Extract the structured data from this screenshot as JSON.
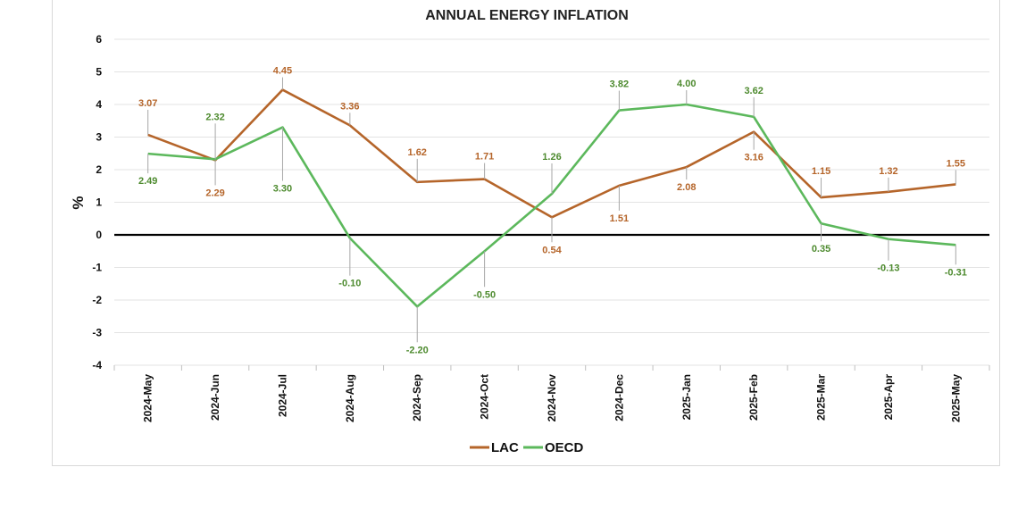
{
  "colors": {
    "lac": "#b5652a",
    "oecd": "#5cb85c",
    "oecd_label": "#4d8a2e",
    "grid": "#e3e3e3",
    "zero_line": "#000000",
    "leader": "#a6a6a6"
  },
  "chart_data": {
    "type": "line",
    "title": "ANNUAL ENERGY INFLATION",
    "xlabel": "",
    "ylabel": "%",
    "ylim": [
      -4,
      6
    ],
    "yticks": [
      "6",
      "5",
      "4",
      "3",
      "2",
      "1",
      "0",
      "-1",
      "-2",
      "-3",
      "-4"
    ],
    "grid": true,
    "legend_position": "bottom",
    "categories": [
      "2024-May",
      "2024-Jun",
      "2024-Jul",
      "2024-Aug",
      "2024-Sep",
      "2024-Oct",
      "2024-Nov",
      "2024-Dec",
      "2025-Jan",
      "2025-Feb",
      "2025-Mar",
      "2025-Apr",
      "2025-May"
    ],
    "series": [
      {
        "name": "LAC",
        "values": [
          3.07,
          2.29,
          4.45,
          3.36,
          1.62,
          1.71,
          0.54,
          1.51,
          2.08,
          3.16,
          1.15,
          1.32,
          1.55
        ],
        "labels": [
          "3.07",
          "2.29",
          "4.45",
          "3.36",
          "1.62",
          "1.71",
          "0.54",
          "1.51",
          "2.08",
          "3.16",
          "1.15",
          "1.32",
          "1.55"
        ]
      },
      {
        "name": "OECD",
        "values": [
          2.49,
          2.32,
          3.3,
          -0.1,
          -2.2,
          -0.5,
          1.26,
          3.82,
          4.0,
          3.62,
          0.35,
          -0.13,
          -0.31
        ],
        "labels": [
          "2.49",
          "2.32",
          "3.30",
          "-0.10",
          "-2.20",
          "-0.50",
          "1.26",
          "3.82",
          "4.00",
          "3.62",
          "0.35",
          "-0.13",
          "-0.31"
        ]
      }
    ]
  }
}
